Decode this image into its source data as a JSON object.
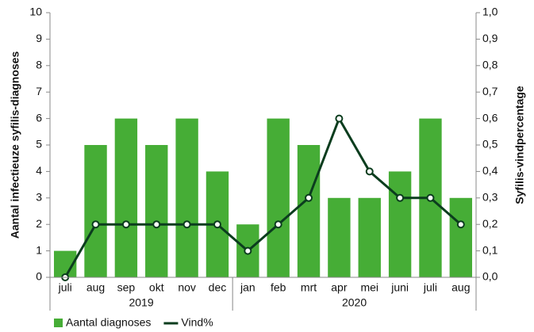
{
  "chart_data": {
    "type": "bar",
    "y_label": "Aantal infectieuze syfilis-diagnoses",
    "y2_label": "Syfilis-vindpercentage",
    "categories": [
      "juli",
      "aug",
      "sep",
      "okt",
      "nov",
      "dec",
      "jan",
      "feb",
      "mrt",
      "apr",
      "mei",
      "juni",
      "juli",
      "aug"
    ],
    "category_groups": [
      {
        "label": "2019",
        "size": 6
      },
      {
        "label": "2020",
        "size": 8
      }
    ],
    "series": [
      {
        "name": "Aantal diagnoses",
        "type": "bar",
        "color": "#46ad36",
        "values": [
          1,
          5,
          6,
          5,
          6,
          4,
          2,
          6,
          5,
          3,
          3,
          4,
          6,
          3
        ]
      },
      {
        "name": "Vind%",
        "type": "line",
        "axis": "y2",
        "color": "#0b3d1e",
        "values": [
          0,
          0.2,
          0.2,
          0.2,
          0.2,
          0.2,
          0.1,
          0.2,
          0.3,
          0.6,
          0.4,
          0.3,
          0.3,
          0.2
        ]
      }
    ],
    "ylim": [
      0,
      10
    ],
    "yticks": [
      0,
      1,
      2,
      3,
      4,
      5,
      6,
      7,
      8,
      9,
      10
    ],
    "y2lim": [
      0,
      1
    ],
    "y2ticks": [
      {
        "value": 0,
        "label": "0,0"
      },
      {
        "value": 0.1,
        "label": "0,1"
      },
      {
        "value": 0.2,
        "label": "0,2"
      },
      {
        "value": 0.3,
        "label": "0,3"
      },
      {
        "value": 0.4,
        "label": "0,4"
      },
      {
        "value": 0.5,
        "label": "0,5"
      },
      {
        "value": 0.6,
        "label": "0,6"
      },
      {
        "value": 0.7,
        "label": "0,7"
      },
      {
        "value": 0.8,
        "label": "0,8"
      },
      {
        "value": 0.9,
        "label": "0,9"
      },
      {
        "value": 1,
        "label": "1,0"
      }
    ],
    "grid": false,
    "legend": "bottom-left"
  }
}
